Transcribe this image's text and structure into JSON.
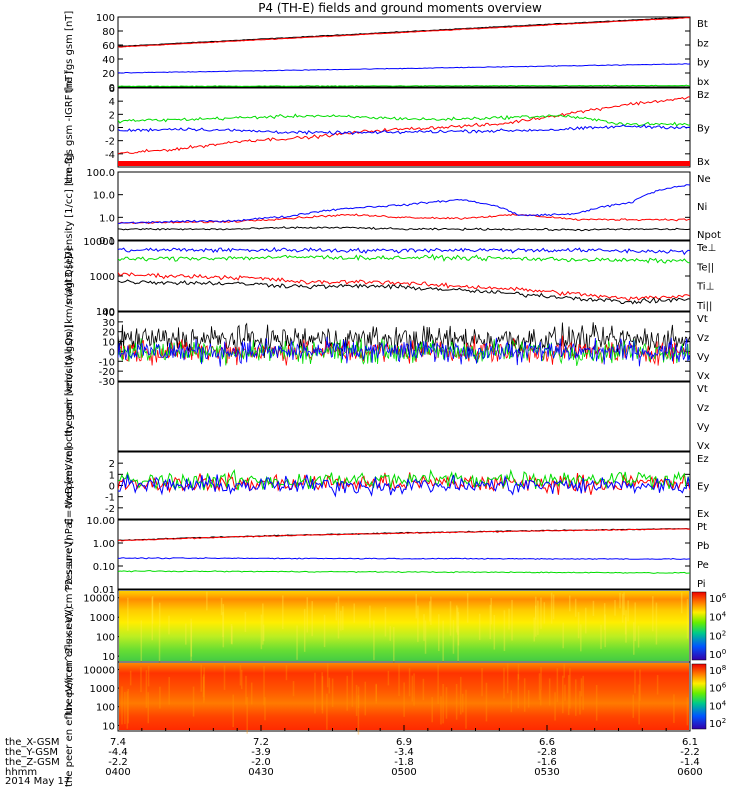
{
  "title": "P4 (TH-E) fields and ground moments overview",
  "date": "2014 May 17",
  "xaxis": {
    "rows": [
      {
        "name": "the_X-GSM",
        "values": [
          "7.4",
          "7.2",
          "6.9",
          "6.6",
          "6.1"
        ]
      },
      {
        "name": "the_Y-GSM",
        "values": [
          "-4.4",
          "-3.9",
          "-3.4",
          "-2.8",
          "-2.2"
        ]
      },
      {
        "name": "the_Z-GSM",
        "values": [
          "-2.2",
          "-2.0",
          "-1.8",
          "-1.6",
          "-1.4"
        ]
      },
      {
        "name": "hhmm",
        "values": [
          "0400",
          "0430",
          "0500",
          "0530",
          "0600"
        ]
      }
    ]
  },
  "colors": {
    "black": "#000000",
    "red": "#ff0000",
    "green": "#00dd00",
    "blue": "#0000ff"
  },
  "chart_data": [
    {
      "type": "line",
      "ylabel": "the fgs gsm [nT]",
      "ylim": [
        0,
        100
      ],
      "ticks": [
        "0",
        "20",
        "40",
        "60",
        "80",
        "100"
      ],
      "legend": [
        {
          "name": "Bt",
          "color": "black"
        },
        {
          "name": "bz",
          "color": "red"
        },
        {
          "name": "by",
          "color": "green"
        },
        {
          "name": "bx",
          "color": "blue"
        }
      ],
      "series": [
        {
          "name": "Bt",
          "color": "black",
          "values": [
            58,
            100
          ]
        },
        {
          "name": "bz",
          "color": "red",
          "values": [
            57,
            99
          ]
        },
        {
          "name": "by",
          "color": "green",
          "values": [
            1,
            2
          ]
        },
        {
          "name": "bx",
          "color": "blue",
          "values": [
            20,
            33
          ]
        }
      ]
    },
    {
      "type": "line",
      "ylabel": "the fgs gsm -IGRF [nT]",
      "ylim": [
        -6,
        6
      ],
      "ticks": [
        "-4",
        "-2",
        "0",
        "2",
        "4",
        "6"
      ],
      "legend": [
        {
          "name": "Bz",
          "color": "red"
        },
        {
          "name": "By",
          "color": "green"
        },
        {
          "name": "Bx",
          "color": "blue"
        }
      ],
      "series": [
        {
          "name": "Bz",
          "color": "red",
          "values": [
            -4,
            -3.2,
            -2,
            -1.5,
            -0.5,
            0,
            0.5,
            2,
            3.5,
            4.5
          ]
        },
        {
          "name": "By",
          "color": "green",
          "values": [
            1,
            1.2,
            1.5,
            1.8,
            1.5,
            1.2,
            1.5,
            1.8,
            0.5,
            0.5
          ]
        },
        {
          "name": "Bx",
          "color": "blue",
          "values": [
            -0.5,
            -0.2,
            -0.5,
            -0.8,
            -0.8,
            -0.6,
            -0.5,
            -0.3,
            0.2,
            0
          ]
        }
      ]
    },
    {
      "type": "line",
      "ylabel": "Density [1/cc] [cm-3]",
      "scale": "log",
      "ylim": [
        0.1,
        100
      ],
      "ticks": [
        "0.1",
        "1.0",
        "10.0",
        "100.0"
      ],
      "legend": [
        {
          "name": "Ne",
          "color": "red"
        },
        {
          "name": "Ni",
          "color": "black"
        },
        {
          "name": "Npot",
          "color": "blue"
        }
      ],
      "series": [
        {
          "name": "Ne",
          "color": "red",
          "values": [
            0.55,
            0.6,
            0.65,
            0.9,
            1.3,
            1.0,
            0.9,
            1.3,
            0.8,
            0.8,
            0.8
          ]
        },
        {
          "name": "Ni",
          "color": "black",
          "values": [
            0.3,
            0.3,
            0.3,
            0.35,
            0.35,
            0.3,
            0.3,
            0.3,
            0.28,
            0.3,
            0.3
          ]
        },
        {
          "name": "Npot",
          "color": "blue",
          "values": [
            0.55,
            0.65,
            0.7,
            1.1,
            2.5,
            3.5,
            6.0,
            1.2,
            1.4,
            4.5,
            28
          ]
        }
      ]
    },
    {
      "type": "line",
      "ylabel": "magt3 [eV]",
      "scale": "log",
      "ylim": [
        100,
        10000
      ],
      "ticks": [
        "100",
        "1000",
        "10000"
      ],
      "legend": [
        {
          "name": "Te⊥",
          "color": "red"
        },
        {
          "name": "Te||",
          "color": "black"
        },
        {
          "name": "Ti⊥",
          "color": "blue"
        },
        {
          "name": "Ti||",
          "color": "green"
        }
      ],
      "series": [
        {
          "name": "Te⊥",
          "color": "red",
          "values": [
            1100,
            1000,
            900,
            650,
            700,
            550,
            450,
            330,
            220,
            280
          ]
        },
        {
          "name": "Te||",
          "color": "black",
          "values": [
            700,
            650,
            600,
            500,
            520,
            430,
            330,
            250,
            180,
            220
          ]
        },
        {
          "name": "Ti⊥",
          "color": "blue",
          "values": [
            5500,
            5600,
            5500,
            5600,
            5300,
            5600,
            5500,
            5500,
            5200,
            5000
          ]
        },
        {
          "name": "Ti||",
          "color": "green",
          "values": [
            3000,
            3200,
            3300,
            3500,
            3300,
            3400,
            3200,
            3000,
            2800,
            2700
          ]
        }
      ]
    },
    {
      "type": "line",
      "ylabel": "the peir velocity gsm [km/s (All Qs)]",
      "ylim": [
        -30,
        40
      ],
      "ticks": [
        "-30",
        "-20",
        "-10",
        "0",
        "10",
        "20",
        "30",
        "40"
      ],
      "legend": [
        {
          "name": "Vt",
          "color": "black"
        },
        {
          "name": "Vz",
          "color": "red"
        },
        {
          "name": "Vy",
          "color": "green"
        },
        {
          "name": "Vx",
          "color": "blue"
        }
      ],
      "series": [
        {
          "name": "Vt",
          "color": "black",
          "values": [
            12,
            12,
            12,
            12,
            12
          ]
        },
        {
          "name": "Vz",
          "color": "red",
          "values": [
            0,
            0,
            0,
            0,
            0
          ]
        },
        {
          "name": "Vy",
          "color": "green",
          "values": [
            0,
            0,
            0,
            0,
            0
          ]
        },
        {
          "name": "Vx",
          "color": "blue",
          "values": [
            0,
            0,
            0,
            0,
            0
          ]
        }
      ]
    },
    {
      "type": "line",
      "ylabel": "the peer velocity gsm [km/s (All Qs)]",
      "ticks": [],
      "legend": [
        {
          "name": "Vt",
          "color": "black"
        },
        {
          "name": "Vz",
          "color": "red"
        },
        {
          "name": "Vy",
          "color": "green"
        },
        {
          "name": "Vx",
          "color": "blue"
        }
      ],
      "series": []
    },
    {
      "type": "line",
      "ylabel": "E=-VxB [mV/m]",
      "ylim": [
        -3,
        3
      ],
      "ticks": [
        "-2",
        "-1",
        "0",
        "1",
        "2"
      ],
      "legend": [
        {
          "name": "Ez",
          "color": "red"
        },
        {
          "name": "Ey",
          "color": "green"
        },
        {
          "name": "Ex",
          "color": "blue"
        }
      ],
      "series": [
        {
          "name": "Ez",
          "color": "red",
          "values": [
            0.2,
            0.2,
            0.2,
            0.2,
            0.2
          ]
        },
        {
          "name": "Ey",
          "color": "green",
          "values": [
            0.4,
            0.4,
            0.5,
            0.6,
            0.6
          ]
        },
        {
          "name": "Ex",
          "color": "blue",
          "values": [
            0,
            0,
            0,
            0,
            0
          ]
        }
      ]
    },
    {
      "type": "line",
      "ylabel": "Pressure [nPa]",
      "scale": "log",
      "ylim": [
        0.01,
        10
      ],
      "ticks": [
        "0.01",
        "0.10",
        "1.00",
        "10.00"
      ],
      "legend": [
        {
          "name": "Pt",
          "color": "black"
        },
        {
          "name": "Pb",
          "color": "red"
        },
        {
          "name": "Pe",
          "color": "green"
        },
        {
          "name": "Pi",
          "color": "blue"
        }
      ],
      "series": [
        {
          "name": "Pt",
          "color": "black",
          "values": [
            1.3,
            4.2
          ]
        },
        {
          "name": "Pb",
          "color": "red",
          "values": [
            1.25,
            4.1
          ]
        },
        {
          "name": "Pe",
          "color": "green",
          "values": [
            0.06,
            0.05
          ]
        },
        {
          "name": "Pi",
          "color": "blue",
          "values": [
            0.22,
            0.2
          ]
        }
      ]
    },
    {
      "type": "heatmap",
      "ylabel": "the peir en eflux eV/(cm^2-s-sr-eV)",
      "scale": "log",
      "ylim": [
        5,
        25000
      ],
      "ticks": [
        "10",
        "100",
        "1000",
        "10000"
      ],
      "colorbar": {
        "ticks": [
          "10^0",
          "10^2",
          "10^4",
          "10^6"
        ]
      }
    },
    {
      "type": "heatmap",
      "ylabel": "the peer en eflux eV/(cm^2-s-sr-eV)",
      "scale": "log",
      "ylim": [
        5,
        25000
      ],
      "ticks": [
        "10",
        "100",
        "1000",
        "10000"
      ],
      "colorbar": {
        "ticks": [
          "10^2",
          "10^4",
          "10^6",
          "10^8"
        ]
      }
    }
  ]
}
